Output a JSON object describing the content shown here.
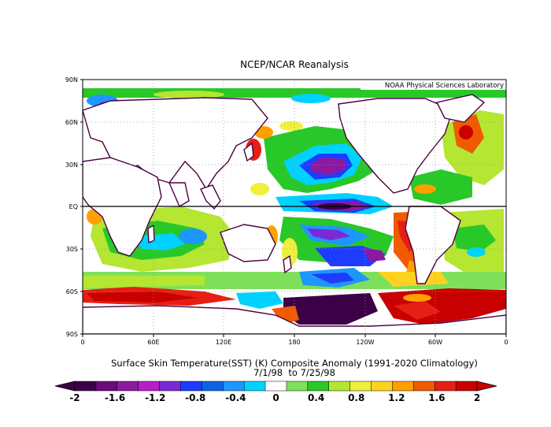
{
  "title": "NCEP/NCAR Reanalysis",
  "credit": "NOAA Physical Sciences Laboratory",
  "caption_line1": "Surface Skin Temperature(SST) (K) Composite Anomaly (1991-2020 Climatology)",
  "caption_line2": "7/1/98  to 7/25/98",
  "lat_labels": [
    "90N",
    "60N",
    "30N",
    "EQ",
    "30S",
    "60S",
    "90S"
  ],
  "lon_labels": [
    "0",
    "60E",
    "120E",
    "180",
    "120W",
    "60W",
    "0"
  ],
  "colorbar": {
    "tick_labels": [
      "-2",
      "-1.6",
      "-1.2",
      "-0.8",
      "-0.4",
      "0",
      "0.4",
      "0.8",
      "1.2",
      "1.6",
      "2"
    ],
    "colors": [
      "#3c0046",
      "#6b0a78",
      "#8c1aa0",
      "#b41ec8",
      "#7a2ad4",
      "#1e3cff",
      "#0a64e6",
      "#1e96ff",
      "#00d2ff",
      "#ffffff",
      "#7ee05a",
      "#28c828",
      "#b4e632",
      "#f0f03c",
      "#ffd21e",
      "#ffa000",
      "#f05a00",
      "#e61e14",
      "#c80000"
    ]
  }
}
